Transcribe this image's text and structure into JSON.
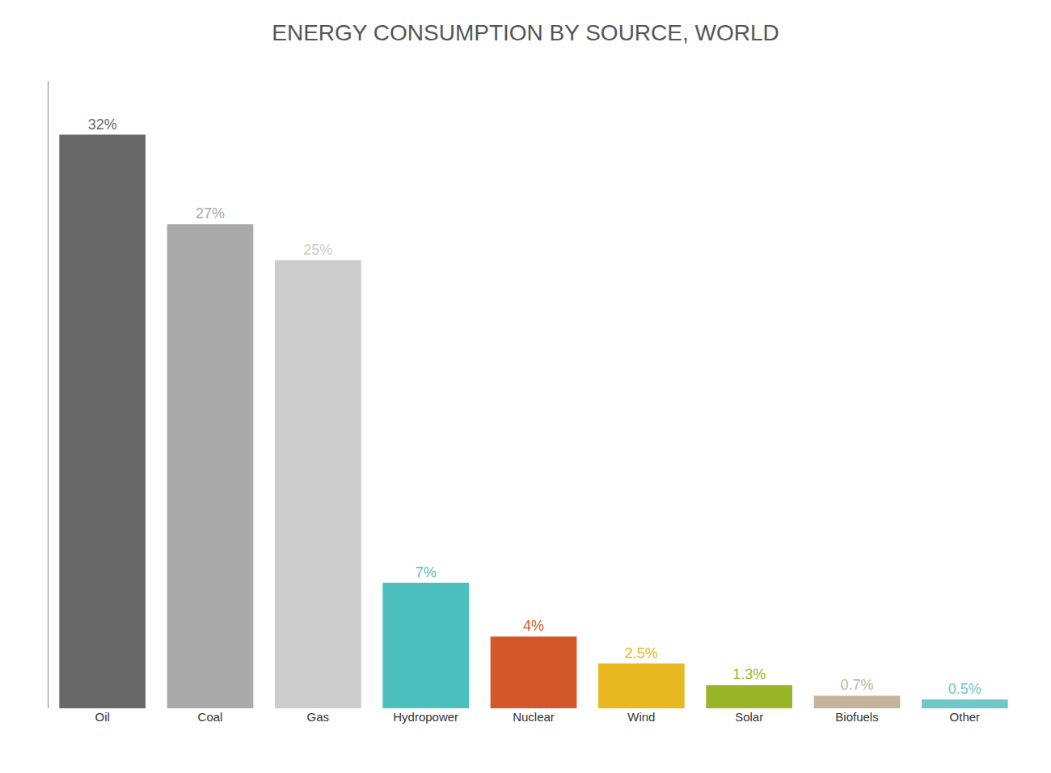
{
  "chart_data": {
    "type": "bar",
    "title": "ENERGY CONSUMPTION BY SOURCE, WORLD",
    "categories": [
      "Oil",
      "Coal",
      "Gas",
      "Hydropower",
      "Nuclear",
      "Wind",
      "Solar",
      "Biofuels",
      "Other"
    ],
    "values": [
      32,
      27,
      25,
      7,
      4,
      2.5,
      1.3,
      0.7,
      0.5
    ],
    "value_labels": [
      "32%",
      "27%",
      "25%",
      "7%",
      "4%",
      "2.5%",
      "1.3%",
      "0.7%",
      "0.5%"
    ],
    "colors": [
      "#686868",
      "#aaaaaa",
      "#cccccc",
      "#4cbfbf",
      "#d4572a",
      "#e8b820",
      "#9ab428",
      "#c4b49a",
      "#6ec8c8"
    ],
    "ylim": [
      0,
      35
    ],
    "grid": false,
    "data_labels": true,
    "tick_labels": "x"
  }
}
